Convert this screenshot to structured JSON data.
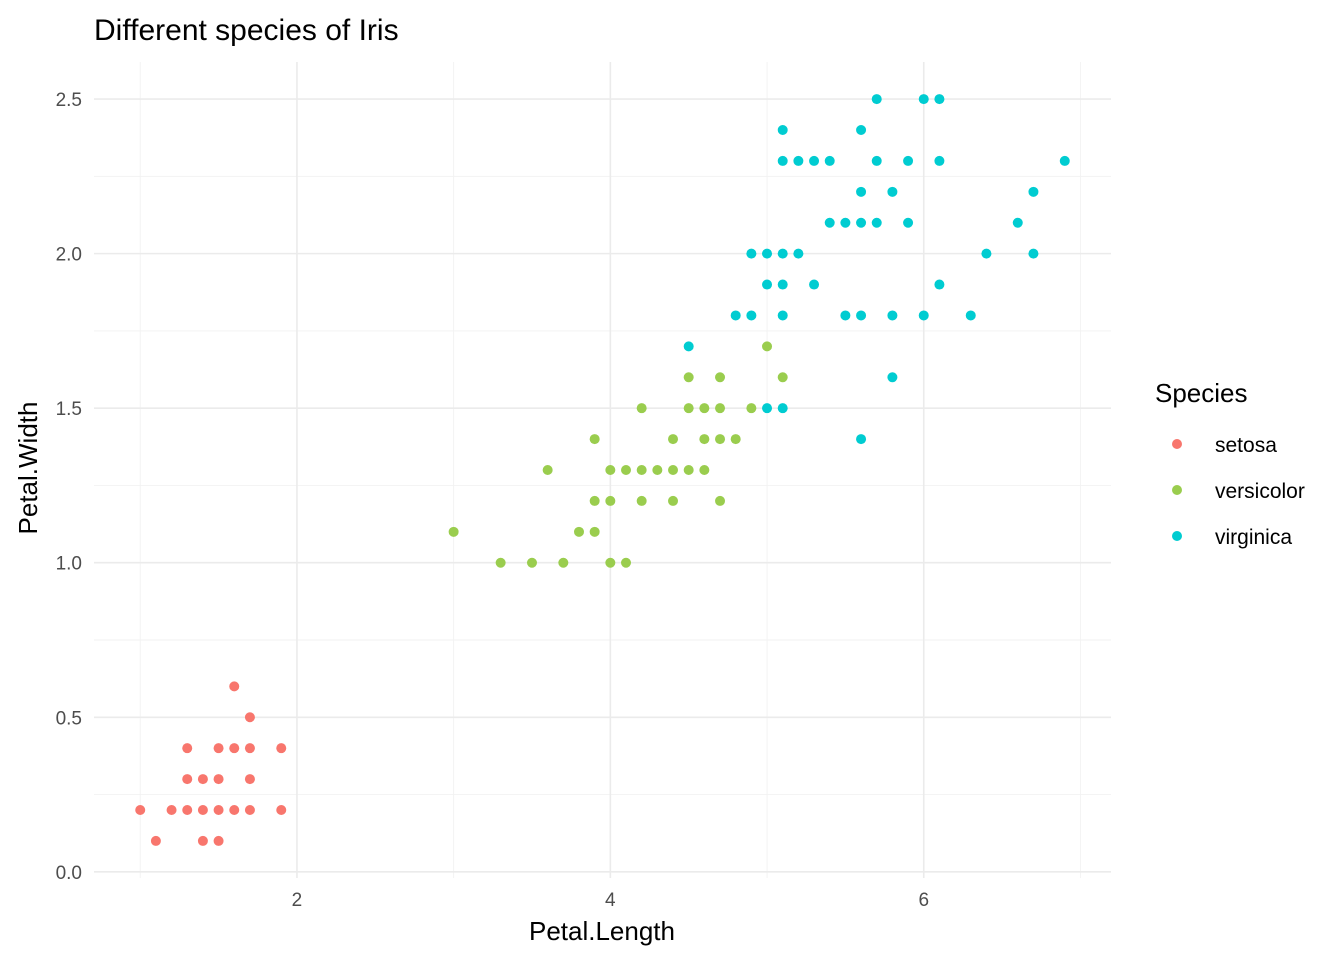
{
  "chart_data": {
    "type": "scatter",
    "title": "Different species of Iris",
    "xlabel": "Petal.Length",
    "ylabel": "Petal.Width",
    "xlim": [
      0.705,
      7.195
    ],
    "ylim": [
      -0.02,
      2.62
    ],
    "x_ticks": [
      2,
      4,
      6
    ],
    "y_ticks": [
      0.0,
      0.5,
      1.0,
      1.5,
      2.0,
      2.5
    ],
    "x_tick_labels": [
      "2",
      "4",
      "6"
    ],
    "y_tick_labels": [
      "0.0",
      "0.5",
      "1.0",
      "1.5",
      "2.0",
      "2.5"
    ],
    "grid": true,
    "legend": {
      "title": "Species",
      "position": "right"
    },
    "series": [
      {
        "name": "setosa",
        "color": "#F8766D",
        "points": [
          [
            1.0,
            0.2
          ],
          [
            1.1,
            0.1
          ],
          [
            1.2,
            0.2
          ],
          [
            1.3,
            0.2
          ],
          [
            1.3,
            0.3
          ],
          [
            1.3,
            0.4
          ],
          [
            1.4,
            0.1
          ],
          [
            1.4,
            0.2
          ],
          [
            1.4,
            0.3
          ],
          [
            1.5,
            0.1
          ],
          [
            1.5,
            0.2
          ],
          [
            1.5,
            0.3
          ],
          [
            1.5,
            0.4
          ],
          [
            1.6,
            0.2
          ],
          [
            1.6,
            0.4
          ],
          [
            1.6,
            0.6
          ],
          [
            1.7,
            0.2
          ],
          [
            1.7,
            0.3
          ],
          [
            1.7,
            0.4
          ],
          [
            1.7,
            0.5
          ],
          [
            1.9,
            0.2
          ],
          [
            1.9,
            0.4
          ]
        ]
      },
      {
        "name": "versicolor",
        "color": "#9ACD4E",
        "points": [
          [
            3.0,
            1.1
          ],
          [
            3.3,
            1.0
          ],
          [
            3.5,
            1.0
          ],
          [
            3.6,
            1.3
          ],
          [
            3.7,
            1.0
          ],
          [
            3.8,
            1.1
          ],
          [
            3.9,
            1.1
          ],
          [
            3.9,
            1.2
          ],
          [
            3.9,
            1.4
          ],
          [
            4.0,
            1.0
          ],
          [
            4.0,
            1.2
          ],
          [
            4.0,
            1.3
          ],
          [
            4.1,
            1.0
          ],
          [
            4.1,
            1.3
          ],
          [
            4.2,
            1.2
          ],
          [
            4.2,
            1.3
          ],
          [
            4.2,
            1.5
          ],
          [
            4.3,
            1.3
          ],
          [
            4.4,
            1.2
          ],
          [
            4.4,
            1.3
          ],
          [
            4.4,
            1.4
          ],
          [
            4.5,
            1.3
          ],
          [
            4.5,
            1.5
          ],
          [
            4.5,
            1.6
          ],
          [
            4.6,
            1.3
          ],
          [
            4.6,
            1.4
          ],
          [
            4.6,
            1.5
          ],
          [
            4.7,
            1.2
          ],
          [
            4.7,
            1.4
          ],
          [
            4.7,
            1.5
          ],
          [
            4.7,
            1.6
          ],
          [
            4.8,
            1.4
          ],
          [
            4.9,
            1.5
          ],
          [
            5.0,
            1.7
          ],
          [
            5.1,
            1.6
          ]
        ]
      },
      {
        "name": "virginica",
        "color": "#00CCD1",
        "points": [
          [
            4.5,
            1.7
          ],
          [
            4.8,
            1.8
          ],
          [
            4.9,
            1.8
          ],
          [
            4.9,
            2.0
          ],
          [
            5.0,
            1.5
          ],
          [
            5.0,
            1.9
          ],
          [
            5.0,
            2.0
          ],
          [
            5.1,
            1.5
          ],
          [
            5.1,
            1.8
          ],
          [
            5.1,
            1.9
          ],
          [
            5.1,
            2.0
          ],
          [
            5.1,
            2.3
          ],
          [
            5.1,
            2.4
          ],
          [
            5.2,
            2.0
          ],
          [
            5.2,
            2.3
          ],
          [
            5.3,
            1.9
          ],
          [
            5.3,
            2.3
          ],
          [
            5.4,
            2.1
          ],
          [
            5.4,
            2.3
          ],
          [
            5.5,
            1.8
          ],
          [
            5.5,
            2.1
          ],
          [
            5.6,
            1.4
          ],
          [
            5.6,
            1.8
          ],
          [
            5.6,
            2.1
          ],
          [
            5.6,
            2.2
          ],
          [
            5.6,
            2.4
          ],
          [
            5.7,
            2.1
          ],
          [
            5.7,
            2.3
          ],
          [
            5.7,
            2.5
          ],
          [
            5.8,
            1.6
          ],
          [
            5.8,
            1.8
          ],
          [
            5.8,
            2.2
          ],
          [
            5.9,
            2.1
          ],
          [
            5.9,
            2.3
          ],
          [
            6.0,
            1.8
          ],
          [
            6.0,
            2.5
          ],
          [
            6.1,
            1.9
          ],
          [
            6.1,
            2.3
          ],
          [
            6.1,
            2.5
          ],
          [
            6.3,
            1.8
          ],
          [
            6.4,
            2.0
          ],
          [
            6.6,
            2.1
          ],
          [
            6.7,
            2.0
          ],
          [
            6.7,
            2.2
          ],
          [
            6.9,
            2.3
          ]
        ]
      }
    ]
  }
}
